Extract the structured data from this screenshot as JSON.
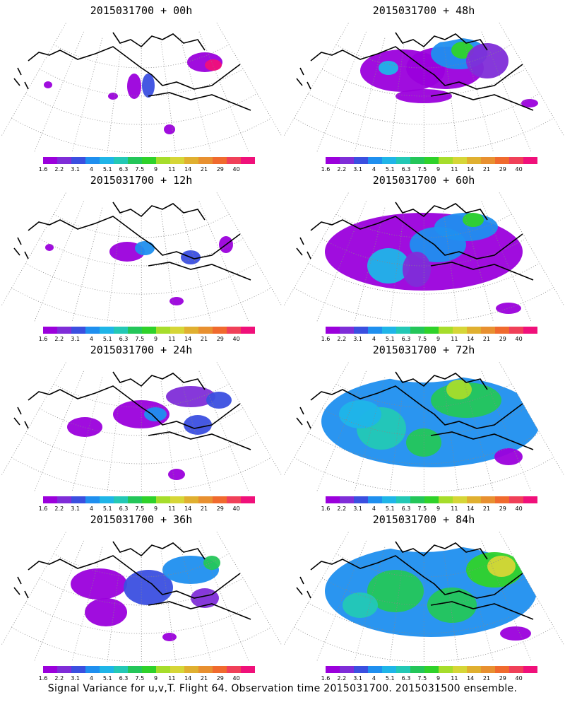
{
  "panels": [
    {
      "title": "2015031700 + 00h",
      "level": 0
    },
    {
      "title": "2015031700 + 48h",
      "level": 4
    },
    {
      "title": "2015031700 + 12h",
      "level": 1
    },
    {
      "title": "2015031700 + 60h",
      "level": 5
    },
    {
      "title": "2015031700 + 24h",
      "level": 2
    },
    {
      "title": "2015031700 + 72h",
      "level": 6
    },
    {
      "title": "2015031700 + 36h",
      "level": 3
    },
    {
      "title": "2015031700 + 84h",
      "level": 7
    }
  ],
  "colorbar": {
    "labels": [
      "1.6",
      "2.2",
      "3.1",
      "4",
      "5.1",
      "6.3",
      "7.5",
      "9",
      "11",
      "14",
      "21",
      "29",
      "40"
    ],
    "colors": [
      "#9b00dc",
      "#7f2dd8",
      "#3b4fe0",
      "#1f8fef",
      "#1fb5e8",
      "#23c8b5",
      "#24c65a",
      "#2fd22a",
      "#a6dd2b",
      "#d6d637",
      "#e0b030",
      "#e89030",
      "#f06a2e",
      "#f04059",
      "#f0107a"
    ]
  },
  "footer": "Signal Variance for u,v,T. Flight 64. Observation time 2015031700. 2015031500 ensemble."
}
